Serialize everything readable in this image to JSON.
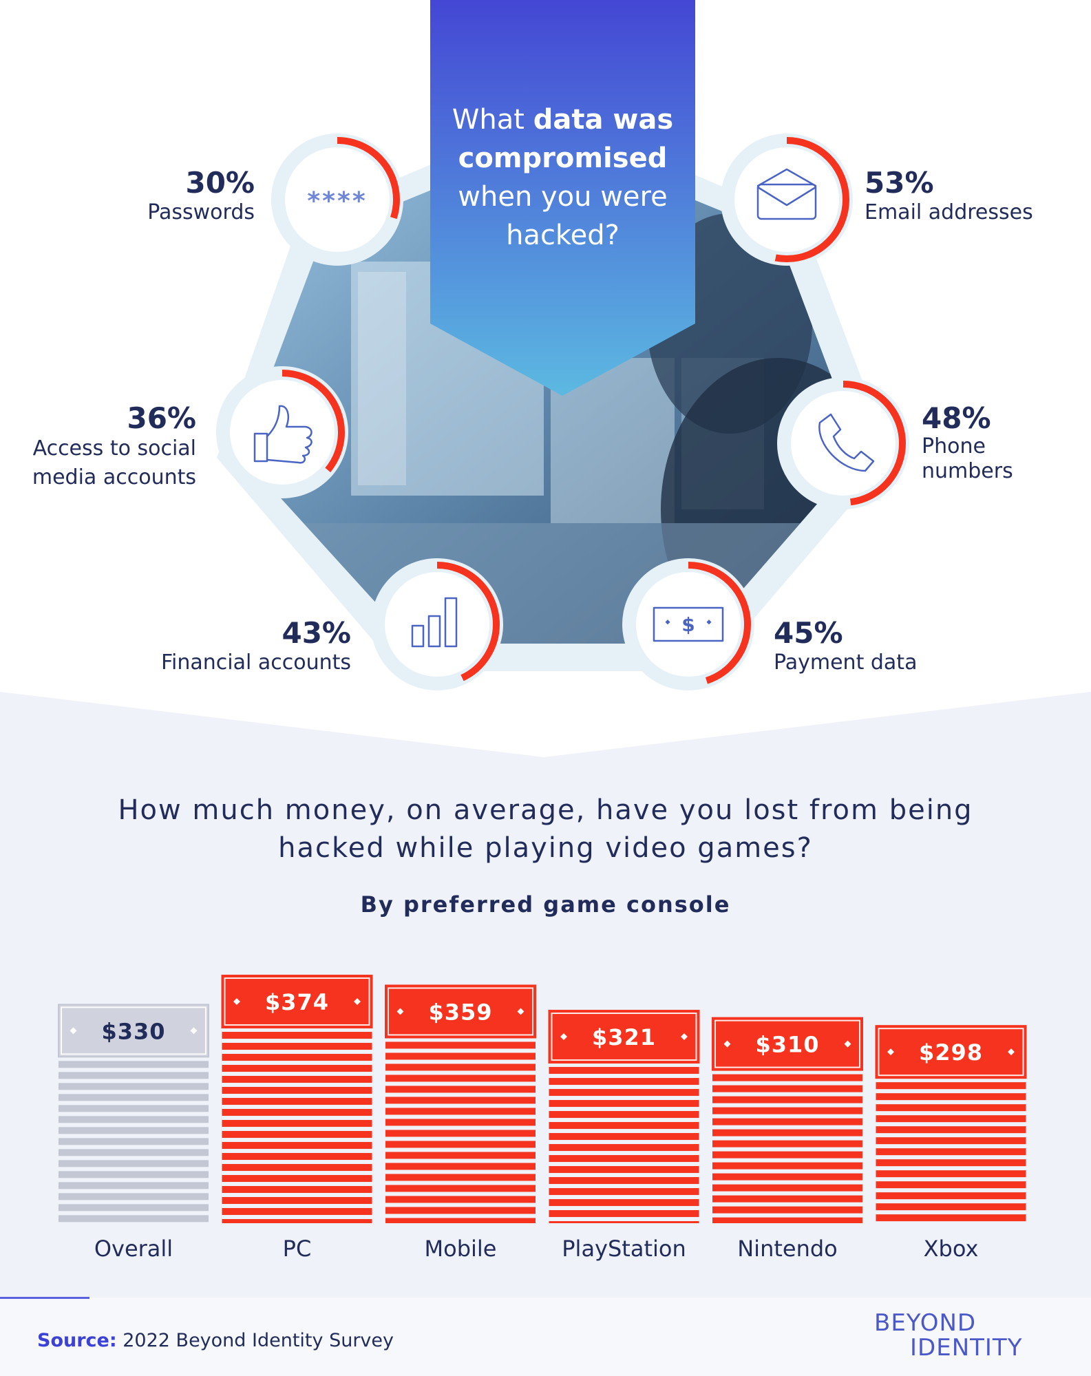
{
  "section1": {
    "title_pre": "What",
    "title_bold": "data was compromised",
    "title_post": "when you were hacked?",
    "items": [
      {
        "name": "passwords",
        "percent": 30,
        "pct_label": "30%",
        "label": "Passwords",
        "icon": "password-asterisks-icon"
      },
      {
        "name": "email",
        "percent": 53,
        "pct_label": "53%",
        "label": "Email addresses",
        "icon": "envelope-icon"
      },
      {
        "name": "social",
        "percent": 36,
        "pct_label": "36%",
        "label": "Access to social\nmedia accounts",
        "icon": "thumbs-up-icon"
      },
      {
        "name": "phone",
        "percent": 48,
        "pct_label": "48%",
        "label": "Phone\nnumbers",
        "icon": "phone-icon"
      },
      {
        "name": "financial",
        "percent": 43,
        "pct_label": "43%",
        "label": "Financial accounts",
        "icon": "bar-chart-icon"
      },
      {
        "name": "payment",
        "percent": 45,
        "pct_label": "45%",
        "label": "Payment data",
        "icon": "banknote-icon"
      }
    ]
  },
  "section2": {
    "question": "How much money, on average, have you lost from being hacked while playing video games?",
    "subtitle": "By preferred game console"
  },
  "chart_data": {
    "type": "bar",
    "title": "How much money, on average, have you lost from being hacked while playing video games?",
    "subtitle": "By preferred game console",
    "categories": [
      "Overall",
      "PC",
      "Mobile",
      "PlayStation",
      "Nintendo",
      "Xbox"
    ],
    "values": [
      330,
      374,
      359,
      321,
      310,
      298
    ],
    "value_labels": [
      "$330",
      "$374",
      "$359",
      "$321",
      "$310",
      "$298"
    ],
    "highlight": [
      false,
      true,
      true,
      true,
      true,
      true
    ]
  },
  "colors": {
    "accent_red": "#f5331e",
    "navy": "#222c5a",
    "grey_bar": "#c3c6d3",
    "banner_top": "#4447d4",
    "banner_bottom": "#5bb8e0"
  },
  "footer": {
    "source_label": "Source:",
    "source_text": "2022 Beyond Identity Survey",
    "logo_line1": "BEYOND",
    "logo_line2": "IDENTITY"
  }
}
